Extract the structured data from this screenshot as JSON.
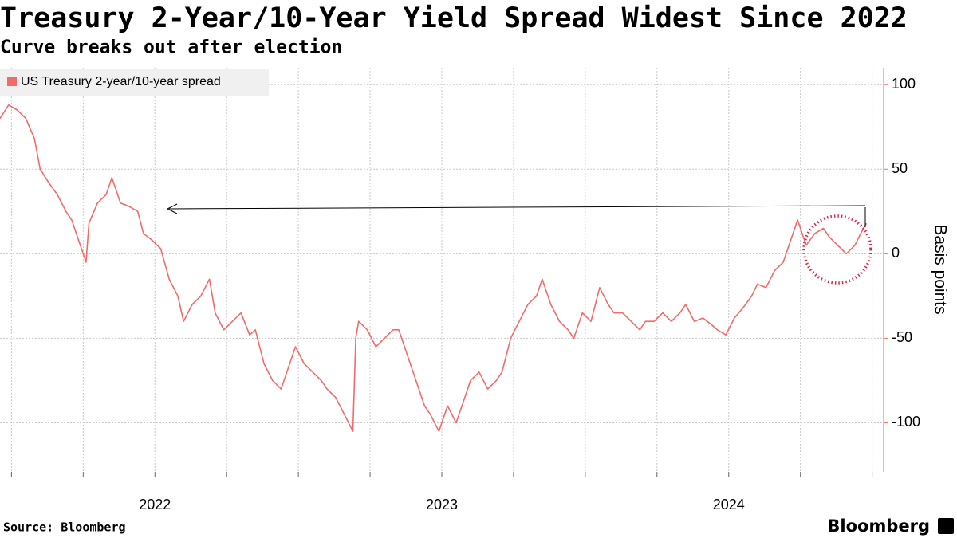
{
  "chart_data": {
    "type": "line",
    "title": "Treasury 2-Year/10-Year Yield Spread Widest Since 2022",
    "subtitle": "Curve breaks out after election",
    "y_label": "Basis points",
    "source": "Source: Bloomberg",
    "brand": "Bloomberg",
    "x": [
      2021.96,
      2021.99,
      2022.02,
      2022.05,
      2022.08,
      2022.1,
      2022.13,
      2022.16,
      2022.19,
      2022.21,
      2022.24,
      2022.26,
      2022.27,
      2022.3,
      2022.33,
      2022.35,
      2022.38,
      2022.41,
      2022.44,
      2022.46,
      2022.49,
      2022.52,
      2022.55,
      2022.58,
      2022.6,
      2022.63,
      2022.66,
      2022.69,
      2022.71,
      2022.74,
      2022.77,
      2022.8,
      2022.83,
      2022.85,
      2022.88,
      2022.91,
      2022.94,
      2022.96,
      2022.99,
      2023.02,
      2023.05,
      2023.08,
      2023.1,
      2023.13,
      2023.16,
      2023.19,
      2023.2,
      2023.21,
      2023.24,
      2023.27,
      2023.3,
      2023.33,
      2023.35,
      2023.38,
      2023.41,
      2023.44,
      2023.46,
      2023.49,
      2023.52,
      2023.55,
      2023.58,
      2023.6,
      2023.63,
      2023.66,
      2023.69,
      2023.71,
      2023.74,
      2023.77,
      2023.8,
      2023.83,
      2023.85,
      2023.88,
      2023.91,
      2023.94,
      2023.96,
      2023.99,
      2024.02,
      2024.05,
      2024.08,
      2024.1,
      2024.13,
      2024.16,
      2024.19,
      2024.21,
      2024.24,
      2024.27,
      2024.3,
      2024.33,
      2024.35,
      2024.38,
      2024.41,
      2024.44,
      2024.46,
      2024.49,
      2024.52,
      2024.55,
      2024.58,
      2024.6,
      2024.63,
      2024.66,
      2024.69,
      2024.71,
      2024.74,
      2024.77,
      2024.8,
      2024.83,
      2024.85,
      2024.88,
      2024.91,
      2024.94,
      2024.96,
      2024.98
    ],
    "series": [
      {
        "name": "US Treasury 2-year/10-year spread",
        "color": "#f26b6b",
        "values": [
          80,
          88,
          85,
          80,
          68,
          50,
          42,
          35,
          25,
          20,
          5,
          -5,
          18,
          30,
          35,
          45,
          30,
          28,
          25,
          12,
          8,
          3,
          -15,
          -25,
          -40,
          -30,
          -25,
          -15,
          -35,
          -45,
          -40,
          -35,
          -48,
          -45,
          -65,
          -75,
          -80,
          -70,
          -55,
          -65,
          -70,
          -75,
          -80,
          -85,
          -95,
          -105,
          -50,
          -40,
          -45,
          -55,
          -50,
          -45,
          -45,
          -60,
          -75,
          -90,
          -95,
          -105,
          -90,
          -100,
          -85,
          -75,
          -70,
          -80,
          -75,
          -70,
          -50,
          -40,
          -30,
          -25,
          -15,
          -30,
          -40,
          -45,
          -50,
          -35,
          -40,
          -20,
          -30,
          -35,
          -35,
          -40,
          -45,
          -40,
          -40,
          -35,
          -40,
          -35,
          -30,
          -40,
          -38,
          -42,
          -45,
          -48,
          -38,
          -32,
          -25,
          -18,
          -20,
          -10,
          -5,
          5,
          20,
          5,
          12,
          15,
          10,
          5,
          0,
          5,
          12,
          18
        ]
      }
    ],
    "xlim": [
      2021.96,
      2025.04
    ],
    "xgrid": [
      2022,
      2022.25,
      2022.5,
      2022.75,
      2023,
      2023.25,
      2023.5,
      2023.75,
      2024,
      2024.25,
      2024.5,
      2024.75,
      2025
    ],
    "xticks": [
      {
        "value": 2022.5,
        "label": "2022"
      },
      {
        "value": 2023.5,
        "label": "2023"
      },
      {
        "value": 2024.5,
        "label": "2024"
      }
    ],
    "ylim": [
      -129,
      110
    ],
    "yticks": [
      -100,
      -50,
      0,
      50,
      100
    ],
    "grid": true,
    "legend": "top-left"
  }
}
